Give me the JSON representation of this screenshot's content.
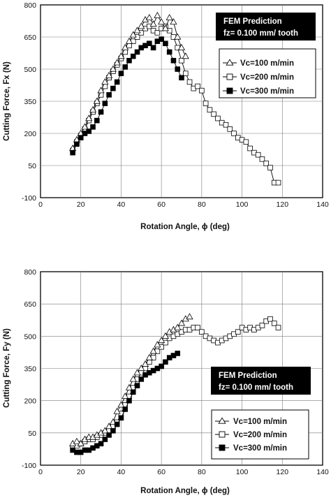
{
  "chart_data": [
    {
      "type": "line",
      "xlabel": "Rotation Angle, ϕ (deg)",
      "ylabel": "Cutting Force,  Fx (N)",
      "xlim": [
        0,
        140
      ],
      "ylim": [
        -100,
        800
      ],
      "xticks": [
        "0",
        "20",
        "40",
        "60",
        "80",
        "100",
        "120",
        "140"
      ],
      "yticks": [
        "-100",
        "50",
        "200",
        "350",
        "500",
        "650",
        "800"
      ],
      "grid": true,
      "legend_position": "right",
      "annotation": [
        "FEM  Prediction",
        "fz= 0.100  mm/ tooth"
      ],
      "series": [
        {
          "name": "Vc=100 m/min",
          "marker": "triangle-open",
          "x": [
            16,
            18,
            20,
            22,
            24,
            26,
            28,
            30,
            32,
            34,
            36,
            38,
            40,
            42,
            44,
            46,
            48,
            50,
            52,
            54,
            56,
            58,
            60,
            62,
            64,
            66,
            68,
            70,
            72
          ],
          "y": [
            130,
            170,
            200,
            230,
            270,
            310,
            350,
            400,
            440,
            470,
            500,
            530,
            560,
            600,
            630,
            660,
            680,
            700,
            730,
            740,
            710,
            750,
            720,
            690,
            740,
            720,
            650,
            600,
            560
          ]
        },
        {
          "name": "Vc=200 m/min",
          "marker": "square-open",
          "x": [
            16,
            18,
            20,
            22,
            24,
            26,
            28,
            30,
            32,
            34,
            36,
            38,
            40,
            42,
            44,
            46,
            48,
            50,
            52,
            54,
            56,
            58,
            60,
            62,
            64,
            66,
            68,
            70,
            72,
            74,
            76,
            78,
            80,
            82,
            84,
            86,
            88,
            90,
            92,
            94,
            96,
            98,
            100,
            102,
            104,
            106,
            108,
            110,
            112,
            114,
            116,
            118
          ],
          "y": [
            120,
            160,
            190,
            220,
            260,
            300,
            340,
            380,
            420,
            460,
            490,
            520,
            550,
            580,
            610,
            630,
            650,
            670,
            690,
            700,
            680,
            670,
            690,
            700,
            680,
            650,
            600,
            540,
            480,
            440,
            410,
            420,
            400,
            340,
            310,
            290,
            270,
            250,
            240,
            220,
            200,
            180,
            170,
            160,
            130,
            110,
            100,
            80,
            60,
            40,
            -30,
            -30
          ]
        },
        {
          "name": "Vc=300 m/min",
          "marker": "square-filled",
          "x": [
            16,
            18,
            20,
            22,
            24,
            26,
            28,
            30,
            32,
            34,
            36,
            38,
            40,
            42,
            44,
            46,
            48,
            50,
            52,
            54,
            56,
            58,
            60,
            62,
            64,
            66,
            68,
            70
          ],
          "y": [
            110,
            150,
            180,
            200,
            210,
            230,
            260,
            300,
            340,
            380,
            410,
            440,
            480,
            510,
            540,
            560,
            580,
            600,
            610,
            620,
            600,
            630,
            640,
            620,
            580,
            540,
            500,
            460
          ]
        }
      ]
    },
    {
      "type": "line",
      "xlabel": "Rotation Angle, ϕ (deg)",
      "ylabel": "Cutting Force,  Fy (N)",
      "xlim": [
        0,
        140
      ],
      "ylim": [
        -100,
        800
      ],
      "xticks": [
        "0",
        "20",
        "40",
        "60",
        "80",
        "100",
        "120",
        "140"
      ],
      "yticks": [
        "-100",
        "50",
        "200",
        "350",
        "500",
        "650",
        "800"
      ],
      "grid": true,
      "legend_position": "bottom-right",
      "annotation": [
        "FEM  Prediction",
        "fz= 0.100  mm/ tooth"
      ],
      "series": [
        {
          "name": "Vc=100 m/min",
          "marker": "triangle-open",
          "x": [
            16,
            18,
            20,
            22,
            24,
            26,
            28,
            30,
            32,
            34,
            36,
            38,
            40,
            42,
            44,
            46,
            48,
            50,
            52,
            54,
            56,
            58,
            60,
            62,
            64,
            66,
            68,
            70,
            72,
            74
          ],
          "y": [
            0,
            10,
            0,
            20,
            30,
            30,
            40,
            50,
            60,
            80,
            100,
            150,
            180,
            220,
            260,
            300,
            330,
            350,
            370,
            400,
            430,
            460,
            480,
            500,
            520,
            530,
            540,
            560,
            580,
            590
          ]
        },
        {
          "name": "Vc=200 m/min",
          "marker": "square-open",
          "x": [
            16,
            18,
            20,
            22,
            24,
            26,
            28,
            30,
            32,
            34,
            36,
            38,
            40,
            42,
            44,
            46,
            48,
            50,
            52,
            54,
            56,
            58,
            60,
            62,
            64,
            66,
            68,
            70,
            72,
            74,
            76,
            78,
            80,
            82,
            84,
            86,
            88,
            90,
            92,
            94,
            96,
            98,
            100,
            102,
            104,
            106,
            108,
            110,
            112,
            114,
            116,
            118
          ],
          "y": [
            -20,
            -10,
            0,
            10,
            20,
            20,
            30,
            40,
            50,
            60,
            80,
            100,
            140,
            180,
            220,
            260,
            300,
            330,
            350,
            380,
            400,
            430,
            450,
            470,
            490,
            500,
            510,
            520,
            530,
            530,
            540,
            540,
            520,
            500,
            490,
            480,
            470,
            480,
            490,
            500,
            510,
            520,
            540,
            530,
            540,
            530,
            540,
            550,
            570,
            580,
            560,
            540
          ]
        },
        {
          "name": "Vc=300 m/min",
          "marker": "square-filled",
          "x": [
            16,
            18,
            20,
            22,
            24,
            26,
            28,
            30,
            32,
            34,
            36,
            38,
            40,
            42,
            44,
            46,
            48,
            50,
            52,
            54,
            56,
            58,
            60,
            62,
            64,
            66,
            68
          ],
          "y": [
            -30,
            -40,
            -40,
            -30,
            -30,
            -20,
            -10,
            0,
            20,
            40,
            60,
            90,
            120,
            160,
            200,
            240,
            270,
            300,
            320,
            330,
            340,
            350,
            360,
            380,
            400,
            410,
            420
          ]
        }
      ]
    }
  ]
}
